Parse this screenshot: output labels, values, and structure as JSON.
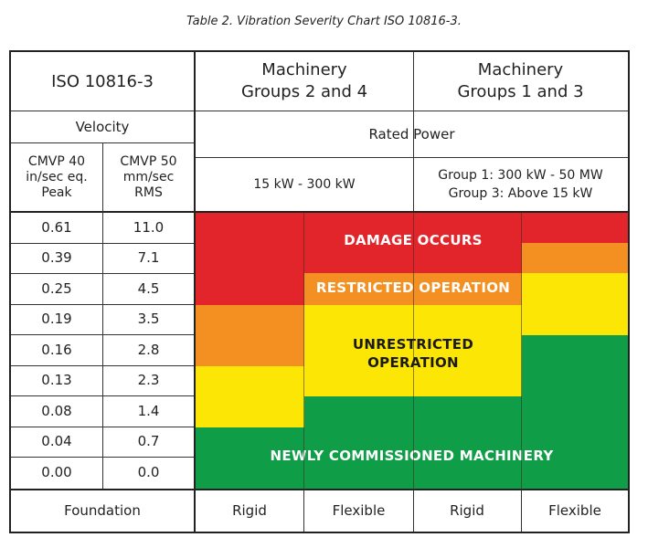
{
  "caption": "Table 2.  Vibration Severity Chart ISO 10816-3.",
  "header": {
    "iso": "ISO 10816-3",
    "group24_line1": "Machinery",
    "group24_line2": "Groups 2 and 4",
    "group13_line1": "Machinery",
    "group13_line2": "Groups 1 and 3",
    "velocity": "Velocity",
    "rated_power": "Rated Power",
    "cmvp40_line1": "CMVP 40",
    "cmvp40_line2": "in/sec eq.",
    "cmvp40_line3": "Peak",
    "cmvp50_line1": "CMVP 50",
    "cmvp50_line2": "mm/sec",
    "cmvp50_line3": "RMS",
    "power24": "15 kW - 300 kW",
    "power13_line1": "Group 1:  300 kW - 50 MW",
    "power13_line2": "Group 3:  Above 15 kW"
  },
  "rows": [
    {
      "peak": "0.61",
      "rms": "11.0"
    },
    {
      "peak": "0.39",
      "rms": "7.1"
    },
    {
      "peak": "0.25",
      "rms": "4.5"
    },
    {
      "peak": "0.19",
      "rms": "3.5"
    },
    {
      "peak": "0.16",
      "rms": "2.8"
    },
    {
      "peak": "0.13",
      "rms": "2.3"
    },
    {
      "peak": "0.08",
      "rms": "1.4"
    },
    {
      "peak": "0.04",
      "rms": "0.7"
    },
    {
      "peak": "0.00",
      "rms": "0.0"
    }
  ],
  "zones": {
    "damage": "DAMAGE OCCURS",
    "restricted": "RESTRICTED OPERATION",
    "unrestricted_line1": "UNRESTRICTED",
    "unrestricted_line2": "OPERATION",
    "newly": "NEWLY COMMISSIONED MACHINERY"
  },
  "colors": {
    "red": "#e2242b",
    "orange": "#f39021",
    "yellow": "#fbe605",
    "green": "#0f9e47"
  },
  "footer": {
    "foundation": "Foundation",
    "rigid1": "Rigid",
    "flexible1": "Flexible",
    "rigid2": "Rigid",
    "flexible2": "Flexible"
  }
}
